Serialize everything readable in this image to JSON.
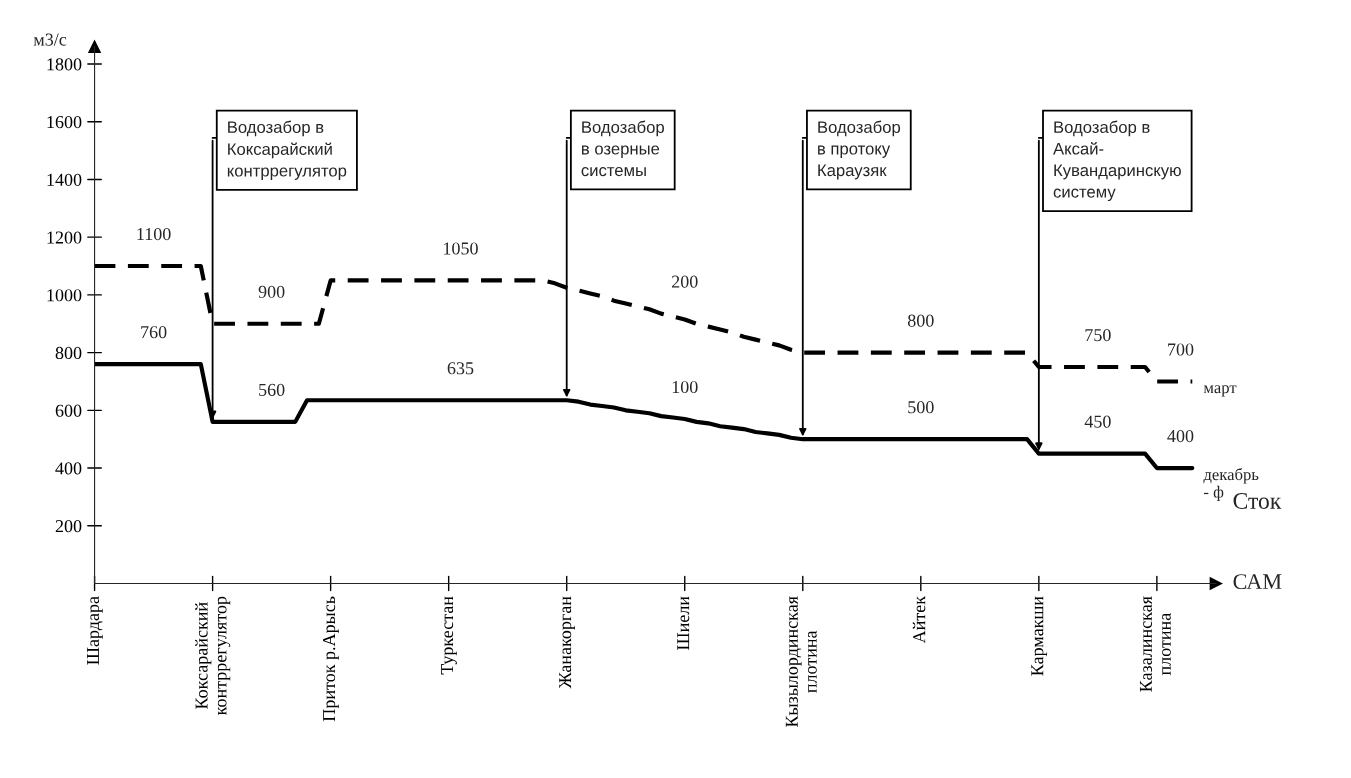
{
  "chart_data": {
    "type": "line",
    "ylabel": "м3/с",
    "xlabel": "САМ",
    "ylim": [
      0,
      1860
    ],
    "categories": [
      "Шардара",
      null,
      null,
      null,
      null,
      null,
      null,
      null,
      null,
      null,
      "Коксарайский\nконтррегулятор",
      null,
      null,
      null,
      null,
      null,
      null,
      null,
      null,
      null,
      "Приток р.Арысь",
      null,
      null,
      null,
      null,
      null,
      null,
      null,
      null,
      null,
      "Туркестан",
      null,
      null,
      null,
      null,
      null,
      null,
      null,
      null,
      null,
      "Жанакорган",
      null,
      null,
      null,
      null,
      null,
      null,
      null,
      null,
      null,
      "Шиели",
      null,
      null,
      null,
      null,
      null,
      null,
      null,
      null,
      null,
      "Кызылординская\nплотина",
      null,
      null,
      null,
      null,
      null,
      null,
      null,
      null,
      null,
      "Айтек",
      null,
      null,
      null,
      null,
      null,
      null,
      null,
      null,
      null,
      "Кармакши",
      null,
      null,
      null,
      null,
      null,
      null,
      null,
      null,
      null,
      "Казалинская\nплотина",
      null,
      null,
      null
    ],
    "yticks": [
      200,
      400,
      600,
      800,
      1000,
      1200,
      1400,
      1600,
      1800
    ],
    "grid": false,
    "series": [
      {
        "name": "март",
        "color": "#000000",
        "line_style": "dashed",
        "values": [
          1100,
          1100,
          1100,
          1100,
          1100,
          1100,
          1100,
          1100,
          1100,
          1100,
          900,
          900,
          900,
          900,
          900,
          900,
          900,
          900,
          900,
          900,
          1050,
          1050,
          1050,
          1050,
          1050,
          1050,
          1050,
          1050,
          1050,
          1050,
          1050,
          1050,
          1050,
          1050,
          1050,
          1050,
          1050,
          1050,
          1050,
          1040,
          1025,
          1015,
          1005,
          995,
          980,
          970,
          960,
          950,
          935,
          925,
          915,
          900,
          890,
          880,
          870,
          855,
          845,
          835,
          825,
          810,
          800,
          800,
          800,
          800,
          800,
          800,
          800,
          800,
          800,
          800,
          800,
          800,
          800,
          800,
          800,
          800,
          800,
          800,
          800,
          800,
          750,
          750,
          750,
          750,
          750,
          750,
          750,
          750,
          750,
          750,
          700,
          700,
          700,
          700
        ],
        "value_labels": [
          null,
          null,
          null,
          null,
          null,
          "1100",
          null,
          null,
          null,
          null,
          null,
          null,
          null,
          null,
          null,
          "900",
          null,
          null,
          null,
          null,
          null,
          null,
          null,
          null,
          null,
          null,
          null,
          null,
          null,
          null,
          null,
          "1050",
          null,
          null,
          null,
          null,
          null,
          null,
          null,
          null,
          null,
          null,
          null,
          null,
          null,
          null,
          null,
          null,
          null,
          null,
          null,
          null,
          null,
          null,
          null,
          null,
          null,
          null,
          null,
          null,
          null,
          null,
          null,
          null,
          null,
          null,
          null,
          null,
          null,
          null,
          "800",
          null,
          null,
          null,
          null,
          null,
          null,
          null,
          null,
          null,
          null,
          null,
          null,
          null,
          null,
          "750",
          null,
          null,
          null,
          null,
          null,
          null,
          "700",
          null
        ]
      },
      {
        "name": "декабрь\n- ф",
        "color": "#000000",
        "line_style": "solid",
        "values": [
          760,
          760,
          760,
          760,
          760,
          760,
          760,
          760,
          760,
          760,
          560,
          560,
          560,
          560,
          560,
          560,
          560,
          560,
          635,
          635,
          635,
          635,
          635,
          635,
          635,
          635,
          635,
          635,
          635,
          635,
          635,
          635,
          635,
          635,
          635,
          635,
          635,
          635,
          635,
          635,
          635,
          630,
          620,
          615,
          610,
          600,
          595,
          590,
          580,
          575,
          570,
          560,
          555,
          545,
          540,
          535,
          525,
          520,
          515,
          505,
          500,
          500,
          500,
          500,
          500,
          500,
          500,
          500,
          500,
          500,
          500,
          500,
          500,
          500,
          500,
          500,
          500,
          500,
          500,
          500,
          450,
          450,
          450,
          450,
          450,
          450,
          450,
          450,
          450,
          450,
          400,
          400,
          400,
          400
        ],
        "value_labels": [
          null,
          null,
          null,
          null,
          null,
          "760",
          null,
          null,
          null,
          null,
          null,
          null,
          null,
          null,
          null,
          "560",
          null,
          null,
          null,
          null,
          null,
          null,
          null,
          null,
          null,
          null,
          null,
          null,
          null,
          null,
          null,
          "635",
          null,
          null,
          null,
          null,
          null,
          null,
          null,
          null,
          null,
          null,
          null,
          null,
          null,
          null,
          null,
          null,
          null,
          null,
          null,
          null,
          null,
          null,
          null,
          null,
          null,
          null,
          null,
          null,
          null,
          null,
          null,
          null,
          null,
          null,
          null,
          null,
          null,
          null,
          "500",
          null,
          null,
          null,
          null,
          null,
          null,
          null,
          null,
          null,
          null,
          null,
          null,
          null,
          null,
          "450",
          null,
          null,
          null,
          null,
          null,
          null,
          "400",
          null
        ]
      }
    ],
    "annotations": [
      {
        "text": "Водозабор в\nКоксарайский\nконтррегулятор",
        "x": "Коксарайский\nконтррегулятор",
        "y": 560
      },
      {
        "text": "Водозабор\nв озерные\nсистемы",
        "x": "Жанакорган",
        "y": 635
      },
      {
        "text": "Водозабор\nв протоку\nКараузяк",
        "x": "Кызылординская\nплотина",
        "y": 500
      },
      {
        "text": "Водозабор в\nАксай-\nКувандаринскую\nсистему",
        "x": "Кармакши",
        "y": 450
      },
      {
        "text": "200",
        "x": "Шиели",
        "y": 935
      },
      {
        "text": "100",
        "x": "Шиели",
        "y": 570
      },
      "Сток"
    ]
  }
}
